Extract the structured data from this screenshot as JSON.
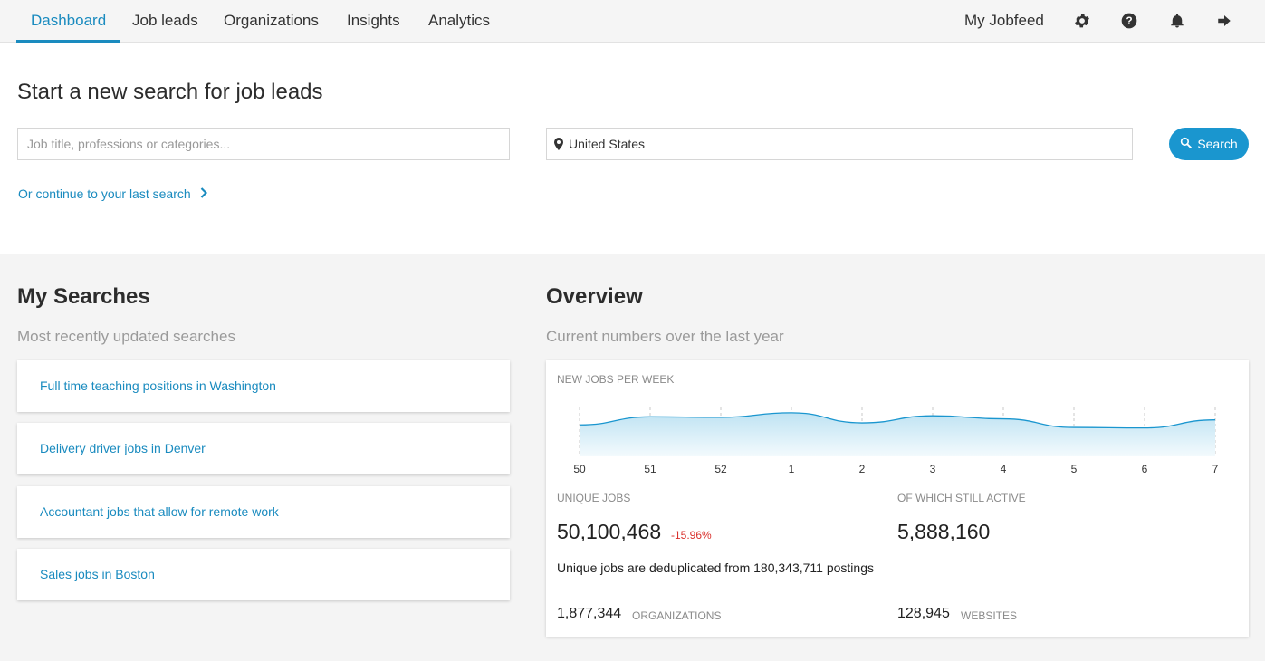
{
  "nav": {
    "tabs": [
      {
        "label": "Dashboard"
      },
      {
        "label": "Job leads"
      },
      {
        "label": "Organizations"
      },
      {
        "label": "Insights"
      },
      {
        "label": "Analytics"
      }
    ],
    "my_jobfeed": "My Jobfeed",
    "icons": [
      "gear-icon",
      "help-icon",
      "bell-icon",
      "logout-icon"
    ]
  },
  "search": {
    "title": "Start a new search for job leads",
    "job_placeholder": "Job title, professions or categories...",
    "location_value": "United States",
    "button_label": "Search",
    "continue_link": "Or continue to your last search"
  },
  "my_searches": {
    "title": "My Searches",
    "subtitle": "Most recently updated searches",
    "items": [
      {
        "label": "Full time teaching positions in Washington"
      },
      {
        "label": "Delivery driver jobs in Denver"
      },
      {
        "label": "Accountant jobs that allow for remote work"
      },
      {
        "label": "Sales jobs in Boston"
      }
    ]
  },
  "overview": {
    "title": "Overview",
    "subtitle": "Current numbers over the last year",
    "chart_label": "NEW JOBS PER WEEK",
    "unique_jobs_label": "UNIQUE JOBS",
    "unique_jobs_value": "50,100,468",
    "unique_jobs_change": "-15.96%",
    "active_label": "OF WHICH STILL ACTIVE",
    "active_value": "5,888,160",
    "dedup_note": "Unique jobs are deduplicated from 180,343,711 postings",
    "organizations_value": "1,877,344",
    "organizations_label": "ORGANIZATIONS",
    "websites_value": "128,945",
    "websites_label": "WEBSITES"
  },
  "colors": {
    "accent": "#1a8bbf",
    "button": "#1a96cf",
    "negative": "#d9302c"
  },
  "chart_data": {
    "type": "area",
    "title": "NEW JOBS PER WEEK",
    "categories": [
      "50",
      "51",
      "52",
      "1",
      "2",
      "3",
      "4",
      "5",
      "6",
      "7"
    ],
    "values": [
      0.62,
      0.78,
      0.77,
      0.86,
      0.66,
      0.8,
      0.74,
      0.57,
      0.56,
      0.72
    ],
    "ylim": [
      0,
      1
    ],
    "grid": "vertical dashed"
  }
}
